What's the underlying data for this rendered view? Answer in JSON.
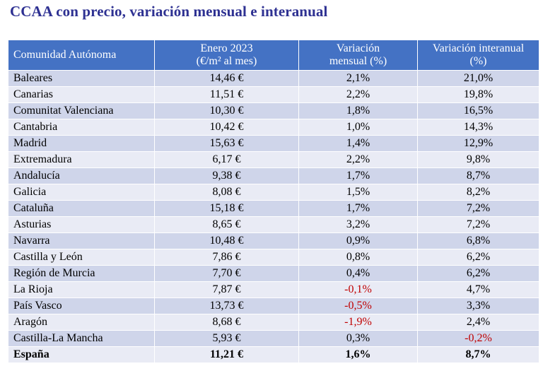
{
  "title": "CCAA con precio, variación mensual e interanual",
  "colors": {
    "title": "#2e3192",
    "header_bg": "#4472c4",
    "row_odd": "#cfd5ea",
    "row_even": "#e9ebf5",
    "negative": "#c00000"
  },
  "table": {
    "headers": {
      "region": "Comunidad Autónoma",
      "price_line1": "Enero 2023",
      "price_line2": "(€/m² al mes)",
      "monthly_line1": "Variación",
      "monthly_line2": "mensual (%)",
      "annual_line1": "Variación interanual",
      "annual_line2": "(%)"
    },
    "rows": [
      {
        "region": "Baleares",
        "price": "14,46 €",
        "monthly": "2,1%",
        "annual": "21,0%"
      },
      {
        "region": "Canarias",
        "price": "11,51 €",
        "monthly": "2,2%",
        "annual": "19,8%"
      },
      {
        "region": "Comunitat Valenciana",
        "price": "10,30 €",
        "monthly": "1,8%",
        "annual": "16,5%"
      },
      {
        "region": "Cantabria",
        "price": "10,42 €",
        "monthly": "1,0%",
        "annual": "14,3%"
      },
      {
        "region": "Madrid",
        "price": "15,63 €",
        "monthly": "1,4%",
        "annual": "12,9%"
      },
      {
        "region": "Extremadura",
        "price": "6,17 €",
        "monthly": "2,2%",
        "annual": "9,8%"
      },
      {
        "region": "Andalucía",
        "price": "9,38 €",
        "monthly": "1,7%",
        "annual": "8,7%"
      },
      {
        "region": "Galicia",
        "price": "8,08 €",
        "monthly": "1,5%",
        "annual": "8,2%"
      },
      {
        "region": "Cataluña",
        "price": "15,18 €",
        "monthly": "1,7%",
        "annual": "7,2%"
      },
      {
        "region": "Asturias",
        "price": "8,65 €",
        "monthly": "3,2%",
        "annual": "7,2%"
      },
      {
        "region": "Navarra",
        "price": "10,48 €",
        "monthly": "0,9%",
        "annual": "6,8%"
      },
      {
        "region": "Castilla y León",
        "price": "7,86 €",
        "monthly": "0,8%",
        "annual": "6,2%"
      },
      {
        "region": "Región de Murcia",
        "price": "7,70 €",
        "monthly": "0,4%",
        "annual": "6,2%"
      },
      {
        "region": "La Rioja",
        "price": "7,87 €",
        "monthly": "-0,1%",
        "annual": "4,7%"
      },
      {
        "region": "País Vasco",
        "price": "13,73 €",
        "monthly": "-0,5%",
        "annual": "3,3%"
      },
      {
        "region": "Aragón",
        "price": "8,68 €",
        "monthly": "-1,9%",
        "annual": "2,4%"
      },
      {
        "region": "Castilla-La Mancha",
        "price": "5,93 €",
        "monthly": "0,3%",
        "annual": "-0,2%"
      }
    ],
    "total": {
      "region": "España",
      "price": "11,21 €",
      "monthly": "1,6%",
      "annual": "8,7%"
    }
  }
}
